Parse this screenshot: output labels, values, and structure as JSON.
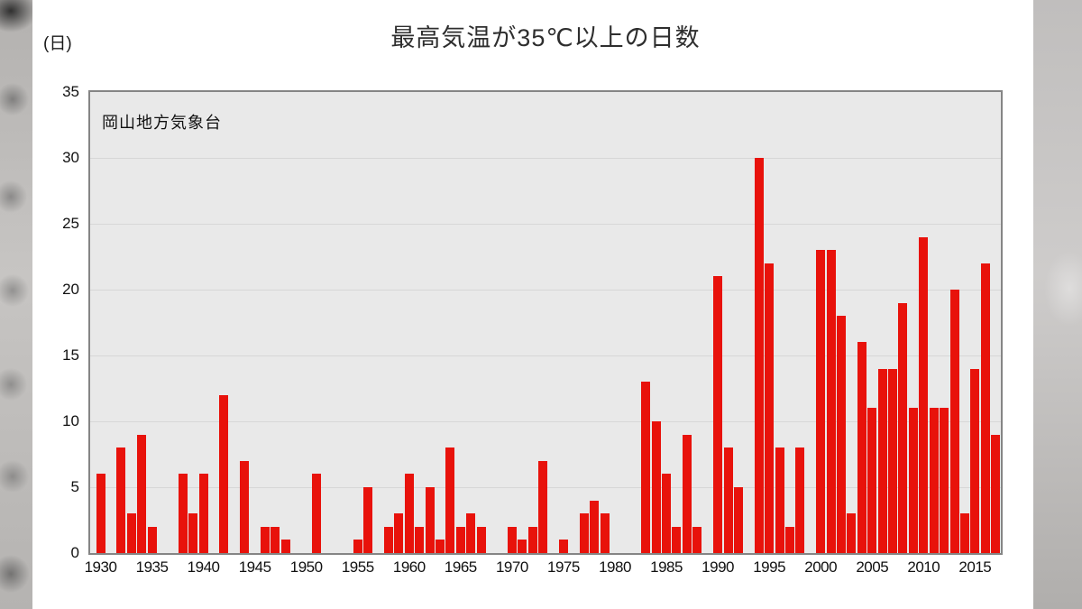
{
  "header": {
    "title": "最高気温が35℃以上の日数",
    "unit_label": "(日)"
  },
  "plot": {
    "annotation": "岡山地方気象台"
  },
  "chart_data": {
    "type": "bar",
    "title": "最高気温が35℃以上の日数",
    "ylabel": "(日)",
    "station_annotation": "岡山地方気象台",
    "bar_color": "#e8120b",
    "plot_background": "#e9e9e9",
    "gridline_color": "#d7d7d7",
    "ylim": [
      0,
      35
    ],
    "y_ticks": [
      0,
      5,
      10,
      15,
      20,
      25,
      30,
      35
    ],
    "x_tick_years": [
      1930,
      1935,
      1940,
      1945,
      1950,
      1955,
      1960,
      1965,
      1970,
      1975,
      1980,
      1985,
      1990,
      1995,
      2000,
      2005,
      2010,
      2015
    ],
    "grid": true,
    "legend": "none",
    "categories": [
      1930,
      1931,
      1932,
      1933,
      1934,
      1935,
      1936,
      1937,
      1938,
      1939,
      1940,
      1941,
      1942,
      1943,
      1944,
      1945,
      1946,
      1947,
      1948,
      1949,
      1950,
      1951,
      1952,
      1953,
      1954,
      1955,
      1956,
      1957,
      1958,
      1959,
      1960,
      1961,
      1962,
      1963,
      1964,
      1965,
      1966,
      1967,
      1968,
      1969,
      1970,
      1971,
      1972,
      1973,
      1974,
      1975,
      1976,
      1977,
      1978,
      1979,
      1980,
      1981,
      1982,
      1983,
      1984,
      1985,
      1986,
      1987,
      1988,
      1989,
      1990,
      1991,
      1992,
      1993,
      1994,
      1995,
      1996,
      1997,
      1998,
      1999,
      2000,
      2001,
      2002,
      2003,
      2004,
      2005,
      2006,
      2007,
      2008,
      2009,
      2010,
      2011,
      2012,
      2013,
      2014,
      2015,
      2016,
      2017
    ],
    "values": [
      6,
      0,
      8,
      3,
      9,
      2,
      0,
      0,
      6,
      3,
      6,
      0,
      12,
      0,
      7,
      0,
      2,
      2,
      1,
      0,
      0,
      6,
      0,
      0,
      0,
      1,
      5,
      0,
      2,
      3,
      6,
      2,
      5,
      1,
      8,
      2,
      3,
      2,
      0,
      0,
      2,
      1,
      2,
      7,
      0,
      1,
      0,
      3,
      4,
      3,
      0,
      0,
      0,
      13,
      10,
      6,
      2,
      9,
      2,
      0,
      21,
      8,
      5,
      0,
      30,
      22,
      8,
      2,
      8,
      0,
      23,
      23,
      18,
      3,
      16,
      11,
      14,
      14,
      19,
      11,
      24,
      11,
      11,
      20,
      3,
      14,
      22,
      9
    ]
  }
}
